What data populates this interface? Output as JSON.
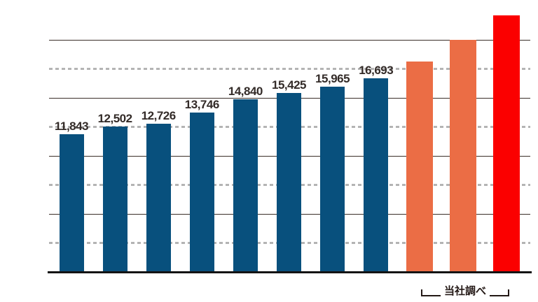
{
  "chart_data": {
    "type": "bar",
    "title": "",
    "xlabel": "",
    "ylabel": "",
    "ylim": [
      0,
      23400
    ],
    "gridline_interval": 2500,
    "gridline_max": 20000,
    "grid_style": "alternating: light-gray dashed at 2500/7500/12500/17500, dark solid at 5000/10000/15000/20000",
    "legend_position": "none",
    "bars": [
      {
        "value": 11843,
        "label": "11,843",
        "color": "#08507d"
      },
      {
        "value": 12502,
        "label": "12,502",
        "color": "#08507d"
      },
      {
        "value": 12726,
        "label": "12,726",
        "color": "#08507d"
      },
      {
        "value": 13746,
        "label": "13,746",
        "color": "#08507d"
      },
      {
        "value": 14840,
        "label": "14,840",
        "color": "#08507d"
      },
      {
        "value": 15425,
        "label": "15,425",
        "color": "#08507d"
      },
      {
        "value": 15965,
        "label": "15,965",
        "color": "#08507d"
      },
      {
        "value": 16693,
        "label": "16,693",
        "color": "#08507d"
      },
      {
        "value": 18100,
        "label": "",
        "color": "#eb6d45",
        "estimated": true
      },
      {
        "value": 19950,
        "label": "",
        "color": "#eb6d45",
        "estimated": true
      },
      {
        "value": 22050,
        "label": "",
        "color": "#fb0000",
        "estimated": true
      }
    ],
    "annotation": {
      "text": "当社調べ",
      "applies_to": "rightmost orange and red bars"
    },
    "colors": {
      "bar_blue": "#08507d",
      "bar_orange": "#eb6d45",
      "bar_red": "#fb0000",
      "label_text": "#332b28",
      "gridline_solid": "#3a2e28",
      "gridline_dashed": "#b4b4b4",
      "axis": "#141414",
      "bracket": "#231815",
      "background": "#ffffff"
    }
  }
}
